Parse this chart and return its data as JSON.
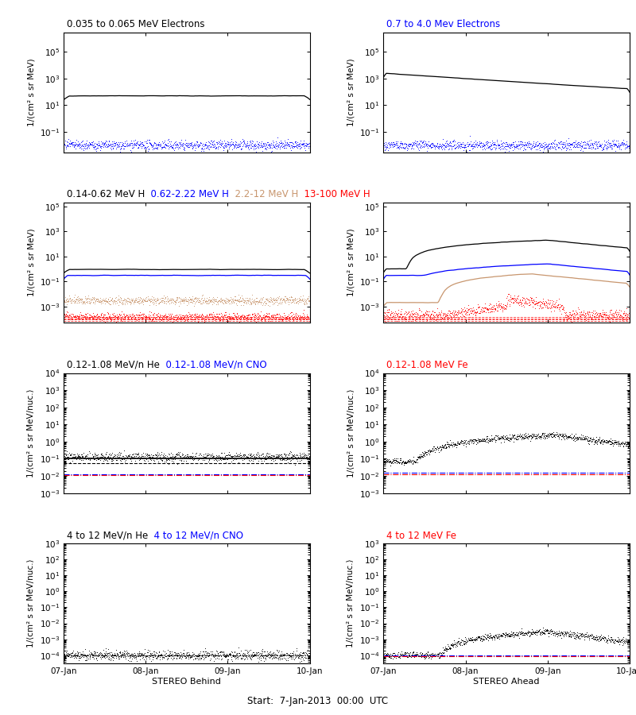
{
  "title_center": "Start:  7-Jan-2013  00:00  UTC",
  "x_tick_labels": [
    "07-Jan",
    "08-Jan",
    "09-Jan",
    "10-Jan"
  ],
  "left_label": "STEREO Behind",
  "right_label": "STEREO Ahead",
  "row0_left_titles": [
    "0.035 to 0.065 MeV Electrons"
  ],
  "row0_left_colors": [
    "black"
  ],
  "row0_right_titles": [
    "0.7 to 4.0 Mev Electrons"
  ],
  "row0_right_colors": [
    "blue"
  ],
  "row1_titles": [
    "0.14-0.62 MeV H",
    "  0.62-2.22 MeV H",
    "  2.2-12 MeV H",
    "  13-100 MeV H"
  ],
  "row1_colors": [
    "black",
    "blue",
    "#c8966e",
    "red"
  ],
  "row1_right_titles": [
    "13-100 MeV H"
  ],
  "row1_right_colors": [
    "red"
  ],
  "row2_titles": [
    "0.12-1.08 MeV/n He",
    "  0.12-1.08 MeV/n CNO"
  ],
  "row2_colors": [
    "black",
    "blue"
  ],
  "row2_right_titles": [
    "0.12-1.08 MeV Fe"
  ],
  "row2_right_colors": [
    "red"
  ],
  "row3_titles": [
    "4 to 12 MeV/n He",
    "  4 to 12 MeV/n CNO"
  ],
  "row3_colors": [
    "black",
    "blue"
  ],
  "row3_right_titles": [
    "4 to 12 MeV Fe"
  ],
  "row3_right_colors": [
    "red"
  ],
  "ylabel_mev": "1/(cm² s sr MeV)",
  "ylabel_nuc": "1/⟨cm² s sr MeV/nuc.⟩",
  "tan_color": "#c8966e",
  "blue_color": "#0000ff",
  "red_color": "#ff0000",
  "black_color": "#000000"
}
